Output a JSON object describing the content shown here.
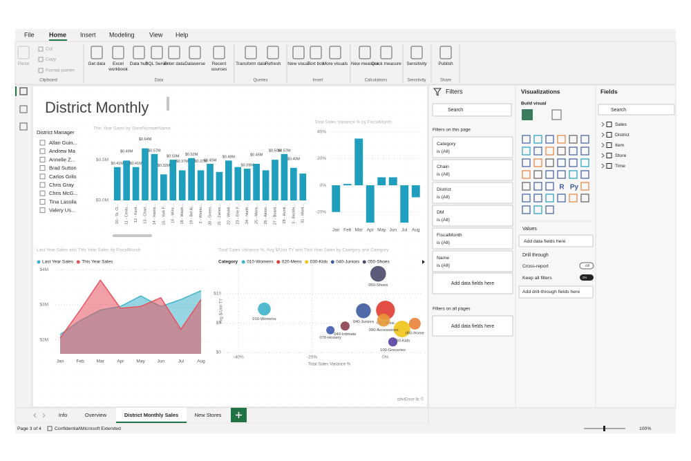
{
  "menu": [
    "File",
    "Home",
    "Insert",
    "Modeling",
    "View",
    "Help"
  ],
  "ribbon": {
    "groups": [
      {
        "label": "Clipboard",
        "buttons": [
          "Paste",
          "Cut",
          "Copy",
          "Format painter"
        ]
      },
      {
        "label": "Data",
        "buttons": [
          "Get data",
          "Excel workbook",
          "Data hub",
          "SQL Server",
          "Enter data",
          "Dataverse",
          "Recent sources"
        ]
      },
      {
        "label": "Queries",
        "buttons": [
          "Transform data",
          "Refresh"
        ]
      },
      {
        "label": "Insert",
        "buttons": [
          "New visual",
          "Text box",
          "More visuals"
        ]
      },
      {
        "label": "Calculations",
        "buttons": [
          "New measure",
          "Quick measure"
        ]
      },
      {
        "label": "Sensitivity",
        "buttons": [
          "Sensitivity"
        ]
      },
      {
        "label": "Share",
        "buttons": [
          "Publish"
        ]
      }
    ]
  },
  "report": {
    "title": "District Monthly",
    "slicer": {
      "title": "District Manager",
      "items": [
        "Allan Guin...",
        "Andrew Ma",
        "Annelie Z...",
        "Brad Sutton",
        "Carlos Grilo",
        "Chris Gray",
        "Chris McG...",
        "Tina Lassila",
        "Valery Us..."
      ]
    },
    "credit": "obviEnce llc ©"
  },
  "chart_data": [
    {
      "type": "bar",
      "title": "This Year Sales by StoreNumberName",
      "color": "#1f9fbd",
      "grid": false,
      "categories": [
        "10 - St. Cl...",
        "11 - Centu...",
        "12 - Kent...",
        "13 - Charl...",
        "14 - Harris...",
        "15 - York F...",
        "16 - Winc...",
        "18 - Wash...",
        "19 - Bel Ai...",
        "2 - Weirto...",
        "20 - Green...",
        "21 - Zanes...",
        "22 - Wickli...",
        "23 - Erie F...",
        "24 - North...",
        "25 - Mans...",
        "26 - Akron...",
        "27 - Board...",
        "28 - Hunti...",
        "3 - Beckle...",
        "31 - Mont..."
      ],
      "values": [
        0.41,
        0.49,
        0.41,
        0.64,
        0.57,
        0.32,
        0.5,
        0.37,
        0.52,
        0.37,
        0.45,
        0.35,
        0.49,
        0.41,
        0.39,
        0.45,
        0.37,
        0.5,
        0.57,
        0.4,
        0.33
      ],
      "value_labels": [
        "$0.41M",
        "$0.49M",
        "$0.41M",
        "$0.64M",
        "$0.57M",
        "$0.32M",
        "$0.50M",
        "$0.37M",
        "$0.52M",
        "$0.37M",
        "$0.45M",
        null,
        "$0.49M",
        null,
        "$0.39M",
        "$0.45M",
        null,
        "$0.50M",
        "$0.57M",
        "$0.40M",
        null
      ],
      "ylim": [
        0,
        0.9
      ],
      "yticks": [
        {
          "value": 0,
          "label": "$0.0M"
        },
        {
          "value": 0.5,
          "label": "$0.5M"
        }
      ]
    },
    {
      "type": "bar",
      "title": "Total Sales Variance % by FiscalMonth",
      "color": "#1f9fbd",
      "grid": true,
      "categories": [
        "Jan",
        "Feb",
        "Mar",
        "Apr",
        "May",
        "Jun",
        "Jul",
        "Aug"
      ],
      "values": [
        -20,
        1,
        35,
        -28,
        6,
        6,
        -28,
        -9
      ],
      "ylim": [
        -30,
        42
      ],
      "yticks": [
        {
          "value": 40,
          "label": "40%"
        },
        {
          "value": 20,
          "label": "20%"
        },
        {
          "value": 0,
          "label": "0%"
        },
        {
          "value": -20,
          "label": "-20%"
        }
      ]
    },
    {
      "type": "area",
      "title": "Last Year Sales and This Year Sales by FiscalMonth",
      "grid": true,
      "categories": [
        "Jan",
        "Feb",
        "Mar",
        "Apr",
        "May",
        "Jun",
        "Jul",
        "Aug"
      ],
      "series": [
        {
          "name": "Last Year Sales",
          "color": "#3fb3c9",
          "values": [
            2.15,
            2.55,
            2.85,
            2.95,
            3.25,
            2.95,
            3.15,
            3.4
          ]
        },
        {
          "name": "This Year Sales",
          "color": "#e8525e",
          "values": [
            2.05,
            2.85,
            3.7,
            2.9,
            2.95,
            3.2,
            2.3,
            3.15
          ]
        }
      ],
      "ylim": [
        1.6,
        4.1
      ],
      "yticks": [
        {
          "value": 2,
          "label": "$2M"
        },
        {
          "value": 3,
          "label": "$3M"
        },
        {
          "value": 4,
          "label": "$4M"
        }
      ]
    },
    {
      "type": "scatter",
      "title": "Total Sales Variance %, Avg $/Unit TY and This Year Sales by Category and Category",
      "grid": true,
      "legend_title": "Category",
      "xlabel": "Total Sales Variance %",
      "ylabel": "Avg $/Unit TY",
      "series": [
        {
          "name": "010-Womens",
          "color": "#3fb3c9",
          "x": [
            -33
          ],
          "values": [
            7.4
          ],
          "sizes": [
            0.6
          ]
        },
        {
          "name": "020-Mens",
          "color": "#e03c31",
          "x": [
            0
          ],
          "values": [
            7.2
          ],
          "sizes": [
            1.3
          ]
        },
        {
          "name": "030-Kids",
          "color": "#f0c419",
          "x": [
            4.5
          ],
          "values": [
            4
          ],
          "sizes": [
            1
          ]
        },
        {
          "name": "040-Juniors",
          "color": "#3e5b9e",
          "x": [
            -6
          ],
          "values": [
            7.1
          ],
          "sizes": [
            0.8
          ]
        },
        {
          "name": "050-Shoes",
          "color": "#4a4a6a",
          "x": [
            -2
          ],
          "values": [
            13.4
          ],
          "sizes": [
            0.9
          ]
        },
        {
          "name": "040-Intimate",
          "color": "#8c3f4e",
          "x": [
            -11
          ],
          "values": [
            4.5
          ],
          "sizes": [
            0.3
          ]
        },
        {
          "name": "070-Hosiery",
          "color": "#3e5bb0",
          "x": [
            -15
          ],
          "values": [
            3.8
          ],
          "sizes": [
            0.25
          ]
        },
        {
          "name": "090-Accessories",
          "color": "#e89a3a",
          "x": [
            -0.5
          ],
          "values": [
            5.5
          ],
          "sizes": [
            0.6
          ]
        },
        {
          "name": "060-Home",
          "color": "#e8823a",
          "x": [
            8
          ],
          "values": [
            4.9
          ],
          "sizes": [
            0.5
          ]
        },
        {
          "name": "100-Groceries",
          "color": "#5a3f9e",
          "x": [
            2
          ],
          "values": [
            1.8
          ],
          "sizes": [
            0.3
          ]
        }
      ],
      "xlim": [
        -44,
        10
      ],
      "xticks": [
        {
          "value": -40,
          "label": "-40%"
        },
        {
          "value": -20,
          "label": "-20%"
        },
        {
          "value": 0,
          "label": "0%"
        }
      ],
      "ylim": [
        0,
        15
      ],
      "yticks": [
        {
          "value": 0,
          "label": "$0"
        },
        {
          "value": 5,
          "label": "$5"
        },
        {
          "value": 10,
          "label": "$10"
        }
      ]
    }
  ],
  "filters": {
    "title": "Filters",
    "search": "Search",
    "on_page_label": "Filters on this page",
    "cards": [
      {
        "name": "Category",
        "value": "is (All)"
      },
      {
        "name": "Chain",
        "value": "is (All)"
      },
      {
        "name": "District",
        "value": "is (All)"
      },
      {
        "name": "DM",
        "value": "is (All)"
      },
      {
        "name": "FiscalMonth",
        "value": "is (All)"
      },
      {
        "name": "Name",
        "value": "is (All)"
      }
    ],
    "add": "Add data fields here",
    "on_all_label": "Filters on all pages",
    "add_all": "Add data fields here"
  },
  "visualizations": {
    "title": "Visualizations",
    "build": "Build visual",
    "icon_labels": [
      "R",
      "Py"
    ],
    "values_label": "Values",
    "values_add": "Add data fields here",
    "drill": "Drill through",
    "cross": "Cross-report",
    "cross_state": "Off",
    "keep": "Keep all filters",
    "keep_state": "On",
    "drill_add": "Add drill-through fields here"
  },
  "fields": {
    "title": "Fields",
    "search": "Search",
    "tables": [
      "Sales",
      "District",
      "Item",
      "Store",
      "Time"
    ]
  },
  "tabs": [
    "Info",
    "Overview",
    "District Monthly Sales",
    "New Stores"
  ],
  "status": {
    "page": "Page 3 of 4",
    "sensitivity": "Confidential\\Microsoft Extended",
    "zoom": "100%"
  }
}
